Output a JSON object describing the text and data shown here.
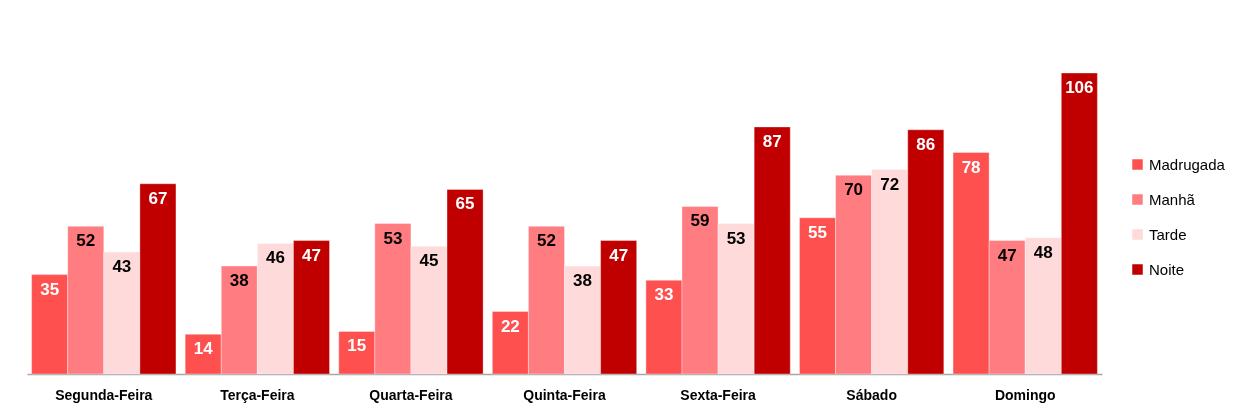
{
  "chart_data": {
    "type": "bar",
    "categories": [
      "Segunda-Feira",
      "Terça-Feira",
      "Quarta-Feira",
      "Quinta-Feira",
      "Sexta-Feira",
      "Sábado",
      "Domingo"
    ],
    "series": [
      {
        "name": "Madrugada",
        "color": "#ff5050",
        "values": [
          35,
          14,
          15,
          22,
          33,
          55,
          78
        ]
      },
      {
        "name": "Manhã",
        "color": "#ff7c80",
        "values": [
          52,
          38,
          53,
          52,
          59,
          70,
          47
        ]
      },
      {
        "name": "Tarde",
        "color": "#ffdada",
        "values": [
          43,
          46,
          45,
          38,
          53,
          72,
          48
        ]
      },
      {
        "name": "Noite",
        "color": "#c00000",
        "values": [
          67,
          47,
          65,
          47,
          87,
          86,
          106
        ]
      }
    ],
    "data_labels": true,
    "grid": false,
    "legend": "right"
  }
}
